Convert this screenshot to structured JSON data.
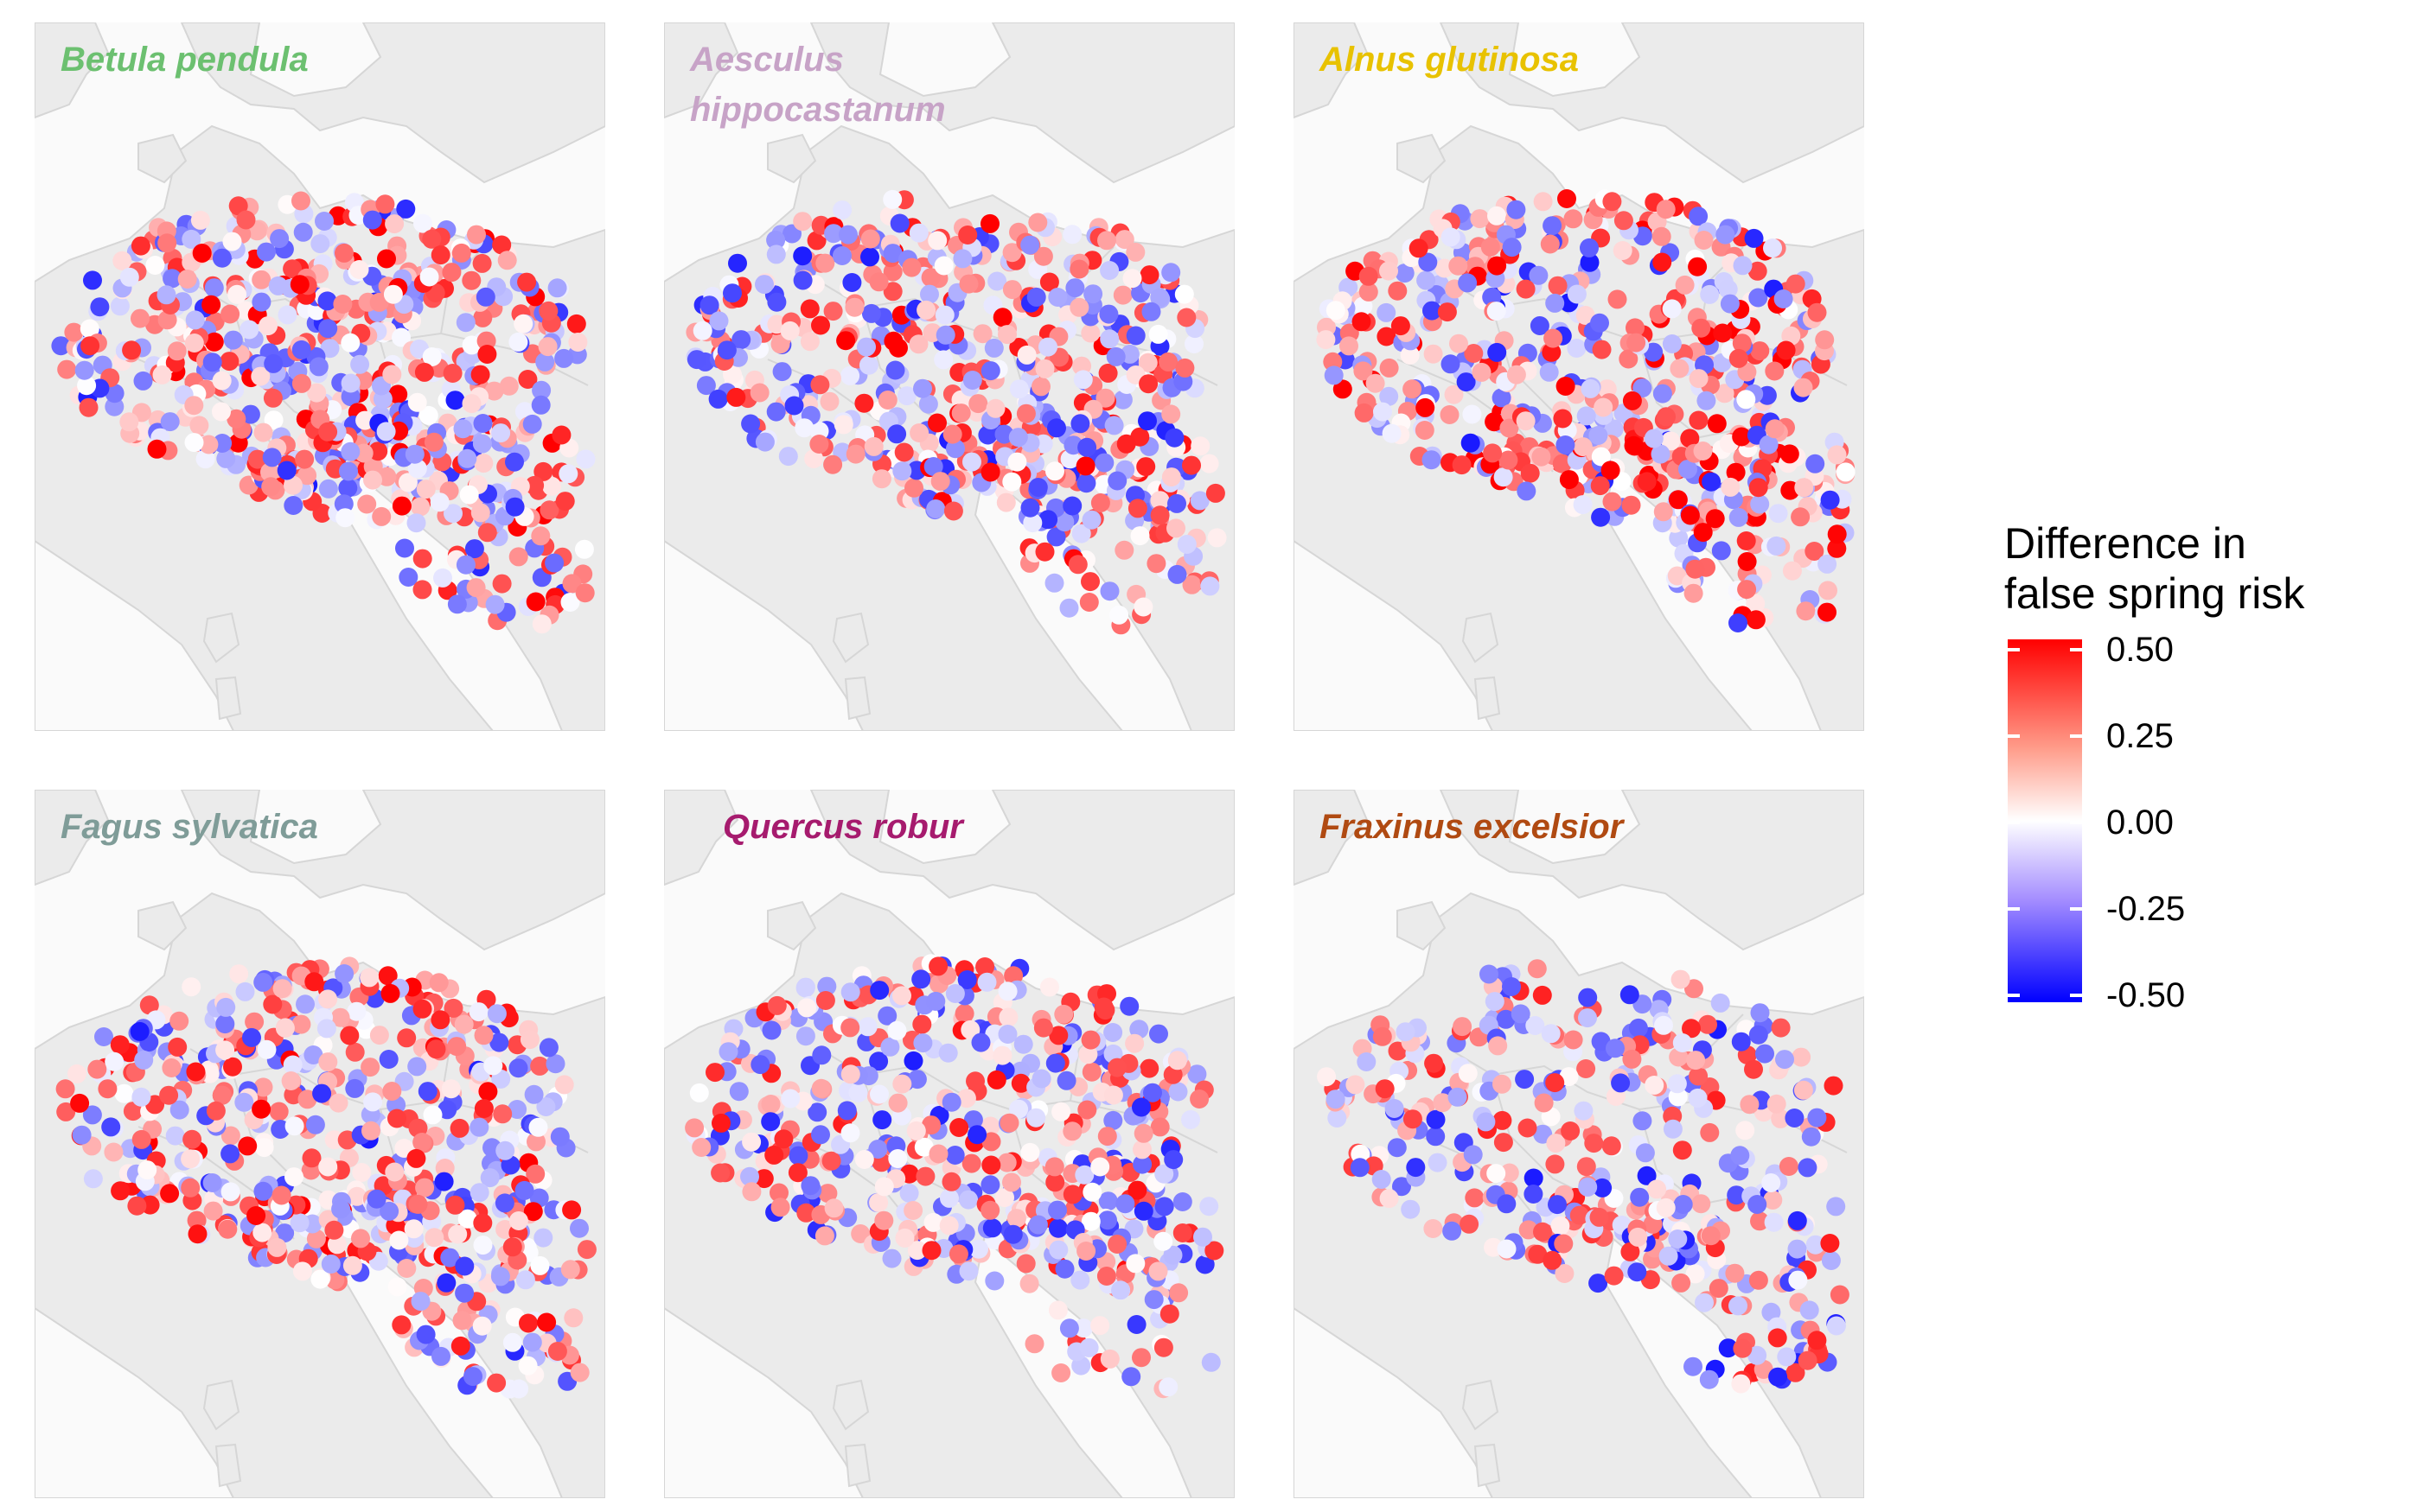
{
  "colors": {
    "panel_background": "#fafafa",
    "land": "#ebebeb",
    "land_border": "#d6d6d6",
    "scale_high": "#ff0000",
    "scale_mid": "#ffffff",
    "scale_low": "#0000ff"
  },
  "panels": [
    {
      "title": "Betula pendula",
      "title_color": "#6cc070"
    },
    {
      "title": "Aesculus hippocastanum",
      "title_color": "#c7a3c7"
    },
    {
      "title": "Alnus glutinosa",
      "title_color": "#e8c200"
    },
    {
      "title": "Fagus sylvatica",
      "title_color": "#7f9c98"
    },
    {
      "title": "Quercus robur",
      "title_color": "#a61b6e"
    },
    {
      "title": "Fraxinus excelsior",
      "title_color": "#b04a12"
    }
  ],
  "legend": {
    "title_line1": "Difference in",
    "title_line2": "false spring risk",
    "labels": [
      "0.50",
      "0.25",
      "0.00",
      "-0.25",
      "-0.50"
    ],
    "range": [
      -0.5,
      0.5
    ]
  }
}
